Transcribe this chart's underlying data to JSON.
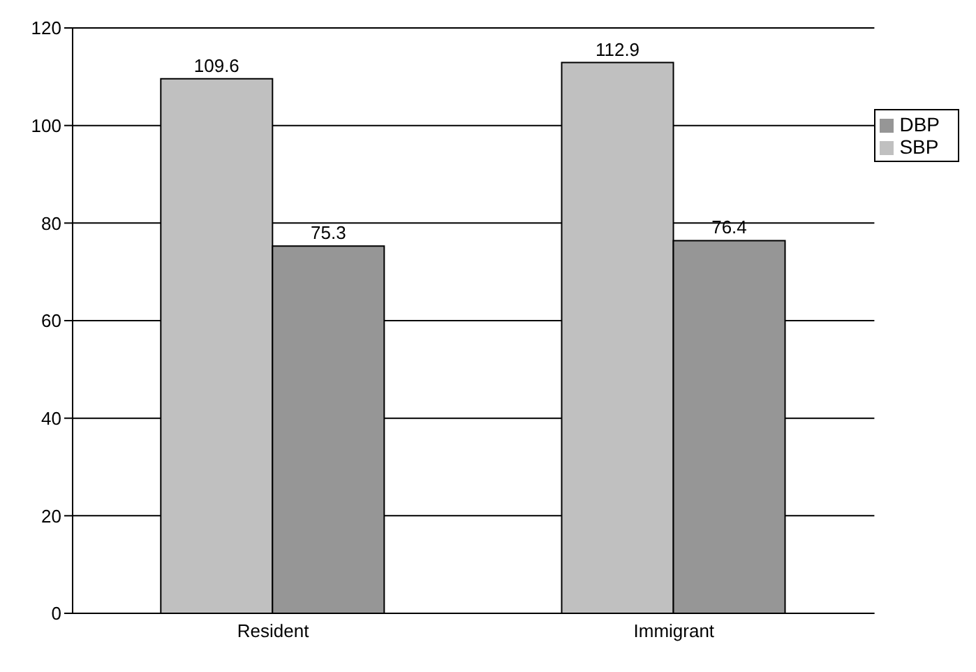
{
  "chart_data": {
    "type": "bar",
    "categories": [
      "Resident",
      "Immigrant"
    ],
    "series": [
      {
        "name": "SBP",
        "color": "#c0c0c0",
        "values": [
          109.6,
          112.9
        ]
      },
      {
        "name": "DBP",
        "color": "#969696",
        "values": [
          75.3,
          76.4
        ]
      }
    ],
    "ylim": [
      0,
      120
    ],
    "yticks": [
      0,
      20,
      40,
      60,
      80,
      100,
      120
    ],
    "grid": "y",
    "legend": "right",
    "data_labels": true
  }
}
